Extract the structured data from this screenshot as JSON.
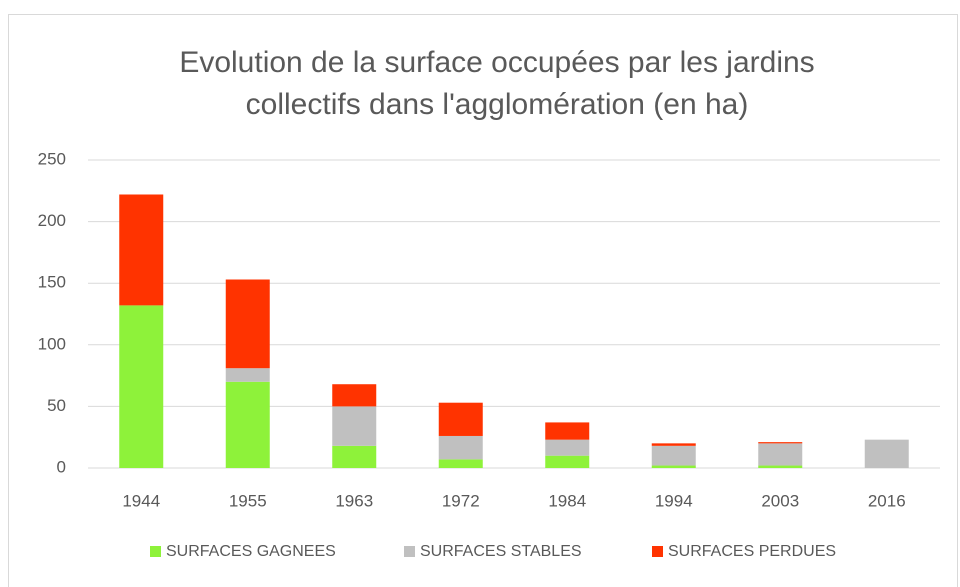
{
  "chart_data": {
    "type": "stacked_bar",
    "title": [
      "Evolution de la surface occupées par les jardins",
      "collectifs dans l'agglomération (en ha)"
    ],
    "categories": [
      "1944",
      "1955",
      "1963",
      "1972",
      "1984",
      "1994",
      "2003",
      "2016"
    ],
    "series": [
      {
        "name": "SURFACES GAGNEES",
        "color": "#8ef23a",
        "values": [
          132,
          70,
          18,
          7,
          10,
          2,
          2,
          0
        ]
      },
      {
        "name": "SURFACES STABLES",
        "color": "#c0c0c0",
        "values": [
          0,
          11,
          32,
          19,
          13,
          16,
          18,
          23
        ]
      },
      {
        "name": "SURFACES PERDUES",
        "color": "#ff3300",
        "values": [
          90,
          72,
          18,
          27,
          14,
          2,
          1,
          0
        ]
      }
    ],
    "ylim": [
      0,
      250
    ],
    "yticks": [
      0,
      50,
      100,
      150,
      200,
      250
    ],
    "grid": true,
    "legend": "bottom"
  }
}
